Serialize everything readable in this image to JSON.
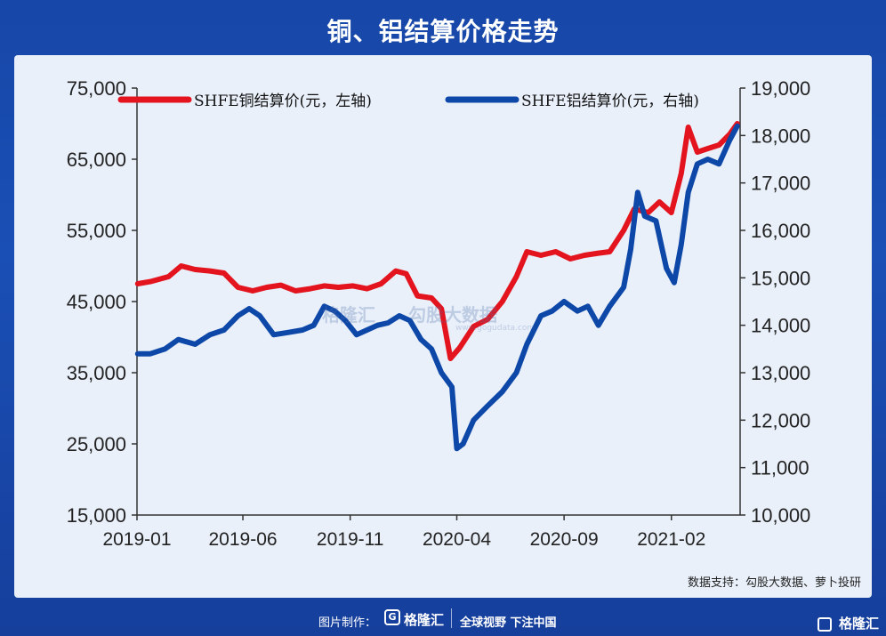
{
  "header": {
    "title": "铜、铝结算价格走势"
  },
  "source": "数据支持：勾股大数据、萝卜投研",
  "footer": {
    "made_by": "图片制作：",
    "logo_text": "格隆汇",
    "slogan": "全球视野 下注中国",
    "corner_logo": "格隆汇"
  },
  "watermark": {
    "left": "格隆汇",
    "right": "勾股大数据",
    "url": "www.gogudata.com"
  },
  "chart_data": {
    "type": "line",
    "x_ticks": [
      "2019-01",
      "2019-06",
      "2019-11",
      "2020-04",
      "2020-09",
      "2021-02"
    ],
    "x_range": [
      "2019-01",
      "2021-05"
    ],
    "y_left": {
      "ticks": [
        "15,000",
        "25,000",
        "35,000",
        "45,000",
        "55,000",
        "65,000",
        "75,000"
      ],
      "range": [
        15000,
        75000
      ]
    },
    "y_right": {
      "ticks": [
        "10,000",
        "11,000",
        "12,000",
        "13,000",
        "14,000",
        "15,000",
        "16,000",
        "17,000",
        "18,000",
        "19,000"
      ],
      "range": [
        10000,
        19000
      ]
    },
    "legend_position": "top",
    "series": [
      {
        "name": "SHFE铜结算价(元，左轴)",
        "color": "#e3141e",
        "axis": "left",
        "points": [
          [
            "2019-01-02",
            47500
          ],
          [
            "2019-01-20",
            47800
          ],
          [
            "2019-02-15",
            48500
          ],
          [
            "2019-03-05",
            50000
          ],
          [
            "2019-03-25",
            49500
          ],
          [
            "2019-04-15",
            49300
          ],
          [
            "2019-05-05",
            49000
          ],
          [
            "2019-05-25",
            47000
          ],
          [
            "2019-06-15",
            46500
          ],
          [
            "2019-07-05",
            47000
          ],
          [
            "2019-07-25",
            47300
          ],
          [
            "2019-08-15",
            46500
          ],
          [
            "2019-09-05",
            46800
          ],
          [
            "2019-09-25",
            47200
          ],
          [
            "2019-10-15",
            47000
          ],
          [
            "2019-11-05",
            47200
          ],
          [
            "2019-11-25",
            46800
          ],
          [
            "2019-12-15",
            47500
          ],
          [
            "2020-01-05",
            49300
          ],
          [
            "2020-01-20",
            48900
          ],
          [
            "2020-02-05",
            45800
          ],
          [
            "2020-02-25",
            45500
          ],
          [
            "2020-03-10",
            44000
          ],
          [
            "2020-03-23",
            37000
          ],
          [
            "2020-04-05",
            38500
          ],
          [
            "2020-04-25",
            41500
          ],
          [
            "2020-05-15",
            42500
          ],
          [
            "2020-06-05",
            45000
          ],
          [
            "2020-06-25",
            48500
          ],
          [
            "2020-07-10",
            52000
          ],
          [
            "2020-07-30",
            51500
          ],
          [
            "2020-08-20",
            52000
          ],
          [
            "2020-09-10",
            51000
          ],
          [
            "2020-09-30",
            51500
          ],
          [
            "2020-10-20",
            51800
          ],
          [
            "2020-11-05",
            52000
          ],
          [
            "2020-11-25",
            55000
          ],
          [
            "2020-12-10",
            58000
          ],
          [
            "2020-12-30",
            57500
          ],
          [
            "2021-01-15",
            59000
          ],
          [
            "2021-02-01",
            57500
          ],
          [
            "2021-02-15",
            63000
          ],
          [
            "2021-02-25",
            69500
          ],
          [
            "2021-03-10",
            66000
          ],
          [
            "2021-03-25",
            66500
          ],
          [
            "2021-04-10",
            67000
          ],
          [
            "2021-04-25",
            68500
          ],
          [
            "2021-05-06",
            70000
          ]
        ]
      },
      {
        "name": "SHFE铝结算价(元，右轴)",
        "color": "#0d47a8",
        "axis": "right",
        "points": [
          [
            "2019-01-02",
            13400
          ],
          [
            "2019-01-20",
            13400
          ],
          [
            "2019-02-10",
            13500
          ],
          [
            "2019-03-01",
            13700
          ],
          [
            "2019-03-25",
            13600
          ],
          [
            "2019-04-15",
            13800
          ],
          [
            "2019-05-05",
            13900
          ],
          [
            "2019-05-25",
            14200
          ],
          [
            "2019-06-10",
            14350
          ],
          [
            "2019-06-25",
            14200
          ],
          [
            "2019-07-15",
            13800
          ],
          [
            "2019-08-05",
            13850
          ],
          [
            "2019-08-25",
            13900
          ],
          [
            "2019-09-10",
            14000
          ],
          [
            "2019-09-25",
            14400
          ],
          [
            "2019-10-10",
            14300
          ],
          [
            "2019-10-25",
            14100
          ],
          [
            "2019-11-10",
            13800
          ],
          [
            "2019-11-25",
            13900
          ],
          [
            "2019-12-10",
            14000
          ],
          [
            "2019-12-25",
            14050
          ],
          [
            "2020-01-10",
            14200
          ],
          [
            "2020-01-25",
            14100
          ],
          [
            "2020-02-10",
            13700
          ],
          [
            "2020-02-25",
            13500
          ],
          [
            "2020-03-10",
            13000
          ],
          [
            "2020-03-25",
            12700
          ],
          [
            "2020-04-01",
            11400
          ],
          [
            "2020-04-10",
            11500
          ],
          [
            "2020-04-25",
            12000
          ],
          [
            "2020-05-15",
            12300
          ],
          [
            "2020-06-05",
            12600
          ],
          [
            "2020-06-25",
            13000
          ],
          [
            "2020-07-10",
            13600
          ],
          [
            "2020-07-30",
            14200
          ],
          [
            "2020-08-15",
            14300
          ],
          [
            "2020-09-01",
            14500
          ],
          [
            "2020-09-20",
            14300
          ],
          [
            "2020-10-05",
            14400
          ],
          [
            "2020-10-20",
            14000
          ],
          [
            "2020-11-05",
            14400
          ],
          [
            "2020-11-25",
            14800
          ],
          [
            "2020-12-05",
            15600
          ],
          [
            "2020-12-15",
            16800
          ],
          [
            "2020-12-25",
            16300
          ],
          [
            "2021-01-10",
            16200
          ],
          [
            "2021-01-25",
            15200
          ],
          [
            "2021-02-05",
            14900
          ],
          [
            "2021-02-15",
            15700
          ],
          [
            "2021-02-25",
            16800
          ],
          [
            "2021-03-10",
            17400
          ],
          [
            "2021-03-25",
            17500
          ],
          [
            "2021-04-10",
            17400
          ],
          [
            "2021-04-25",
            17900
          ],
          [
            "2021-05-06",
            18200
          ]
        ]
      }
    ]
  }
}
